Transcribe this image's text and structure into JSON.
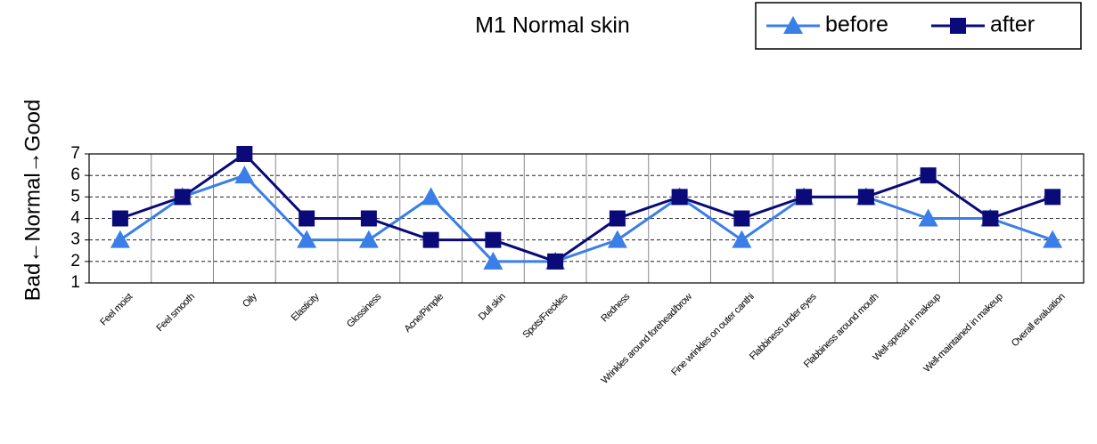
{
  "chart_data": {
    "type": "line",
    "title": "M1 Normal skin",
    "y_label": "Bad←Normal→Good",
    "categories": [
      "Feel moist",
      "Feel smooth",
      "Oily",
      "Elasticity",
      "Glossiness",
      "Acne/Pimple",
      "Dull  skin",
      "Spots/Freckles",
      "Redness",
      "Wrinkles around forehead/brow",
      "Fine wrinkles on outer canthi",
      "Flabbiness under eyes",
      "Flabbiness around mouth",
      "Well-spread in makeup",
      "Well-maintained in makeup",
      "Overall evaluation"
    ],
    "series": [
      {
        "name": "before",
        "color": "#3a7ee8",
        "marker": "triangle",
        "values": [
          3,
          5,
          6,
          3,
          3,
          5,
          2,
          2,
          3,
          5,
          3,
          5,
          5,
          4,
          4,
          3
        ]
      },
      {
        "name": "after",
        "color": "#0a0a78",
        "marker": "square",
        "values": [
          4,
          5,
          7,
          4,
          4,
          3,
          3,
          2,
          4,
          5,
          4,
          5,
          5,
          6,
          4,
          5
        ]
      }
    ],
    "ylim": [
      1,
      7
    ],
    "yticks": [
      1,
      2,
      3,
      4,
      5,
      6,
      7
    ],
    "grid": true,
    "legend": "top-right"
  }
}
